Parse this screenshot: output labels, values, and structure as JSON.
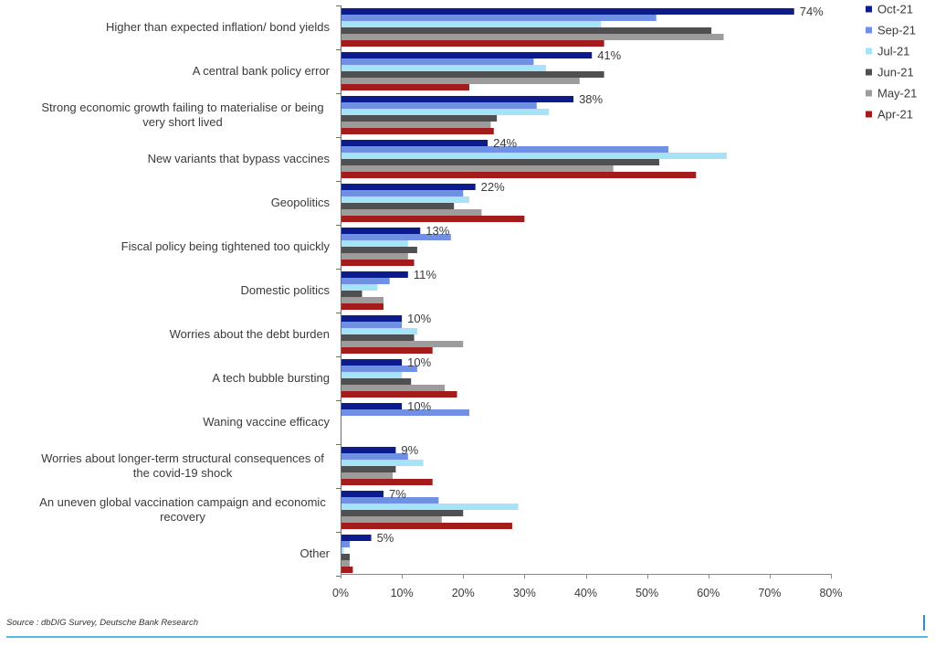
{
  "chart_data": {
    "type": "bar",
    "orientation": "horizontal",
    "categories": [
      "Higher than expected inflation/ bond yields",
      "A central bank policy error",
      "Strong economic growth failing to materialise or being very short lived",
      "New variants that bypass vaccines",
      "Geopolitics",
      "Fiscal policy being tightened too quickly",
      "Domestic politics",
      "Worries about the debt burden",
      "A tech bubble bursting",
      "Waning vaccine efficacy",
      "Worries about longer-term structural consequences of the covid-19 shock",
      "An uneven global vaccination campaign and economic recovery",
      "Other"
    ],
    "series": [
      {
        "name": "Oct-21",
        "color": "#0c1c8c",
        "values": [
          74,
          41,
          38,
          24,
          22,
          13,
          11,
          10,
          10,
          10,
          9,
          7,
          5
        ],
        "labels": [
          "74%",
          "41%",
          "38%",
          "24%",
          "22%",
          "13%",
          "11%",
          "10%",
          "10%",
          "10%",
          "9%",
          "7%",
          "5%"
        ]
      },
      {
        "name": "Sep-21",
        "color": "#6f90e4",
        "values": [
          51.5,
          31.5,
          32,
          53.5,
          20,
          18,
          8,
          10,
          12.5,
          21,
          11,
          16,
          1.5
        ]
      },
      {
        "name": "Jul-21",
        "color": "#a6e2f8",
        "values": [
          42.5,
          33.5,
          34,
          63,
          21,
          11,
          6,
          12.5,
          10,
          null,
          13.5,
          29,
          0.5
        ]
      },
      {
        "name": "Jun-21",
        "color": "#505052",
        "values": [
          60.5,
          43,
          25.5,
          52,
          18.5,
          12.5,
          3.5,
          12,
          11.5,
          null,
          9,
          20,
          1.5
        ]
      },
      {
        "name": "May-21",
        "color": "#9c9c9c",
        "values": [
          62.5,
          39,
          24.5,
          44.5,
          23,
          11,
          7,
          20,
          17,
          null,
          8.5,
          16.5,
          1.5
        ]
      },
      {
        "name": "Apr-21",
        "color": "#a31b1b",
        "values": [
          43,
          21,
          25,
          58,
          30,
          12,
          7,
          15,
          19,
          null,
          15,
          28,
          2
        ]
      }
    ],
    "xlim": [
      0,
      80
    ],
    "x_ticks": [
      "0%",
      "10%",
      "20%",
      "30%",
      "40%",
      "50%",
      "60%",
      "70%",
      "80%"
    ],
    "legend_position": "top-right",
    "grid": false
  },
  "source_note": "Source : dbDIG Survey, Deutsche Bank Research"
}
